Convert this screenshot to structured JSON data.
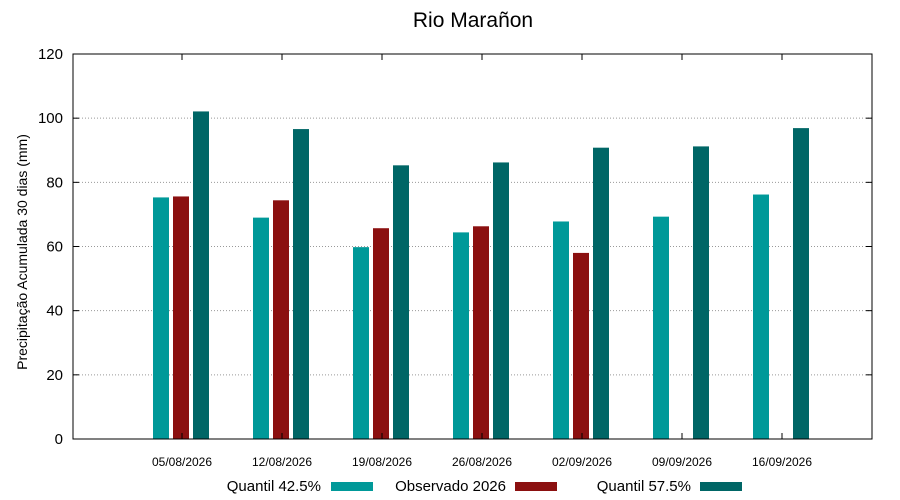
{
  "chart_data": {
    "type": "bar",
    "title": "Rio Marañon",
    "xlabel": "",
    "ylabel": "Precipitação Acumulada 30 dias (mm)",
    "ylim": [
      0,
      120
    ],
    "yticks": [
      0,
      20,
      40,
      60,
      80,
      100,
      120
    ],
    "grid": true,
    "legend_position": "bottom",
    "categories": [
      "05/08/2026",
      "12/08/2026",
      "19/08/2026",
      "26/08/2026",
      "02/09/2026",
      "09/09/2026",
      "16/09/2026"
    ],
    "series": [
      {
        "name": "Quantil 42.5%",
        "color": "#009999",
        "values": [
          75.3,
          69.0,
          59.8,
          64.4,
          67.8,
          69.3,
          76.2
        ]
      },
      {
        "name": "Observado 2026",
        "color": "#8B1010",
        "values": [
          75.6,
          74.4,
          65.7,
          66.3,
          58.0,
          null,
          null
        ]
      },
      {
        "name": "Quantil 57.5%",
        "color": "#006666",
        "values": [
          102.1,
          96.6,
          85.3,
          86.2,
          90.8,
          91.2,
          96.9
        ]
      }
    ]
  }
}
